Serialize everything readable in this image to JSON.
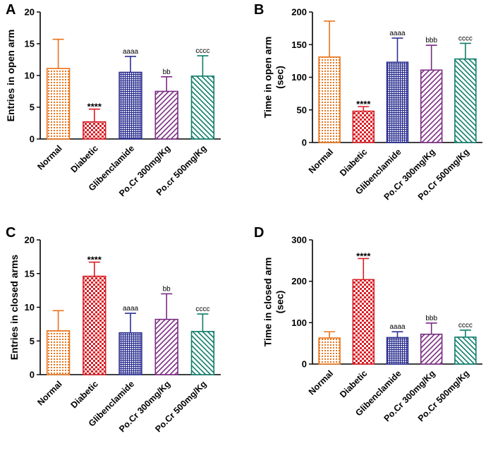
{
  "chart_data": [
    {
      "panel": "A",
      "type": "bar",
      "ylabel_lines": [
        "Entries in open arm"
      ],
      "ylim": [
        0,
        20
      ],
      "yticks": [
        "0",
        "5",
        "10",
        "15",
        "20"
      ],
      "ytick_values": [
        0,
        5,
        10,
        15,
        20
      ],
      "categories": [
        "Normal",
        "Diabetic",
        "Glibenclamide",
        "Po.Cr 300mg/Kg",
        "Po.cr 500mg/Kg"
      ],
      "values": [
        11.1,
        2.7,
        10.5,
        7.5,
        9.9
      ],
      "errors": [
        4.6,
        2.0,
        2.5,
        2.3,
        3.2
      ],
      "annotations": [
        "",
        "****",
        "aaaa",
        "bb",
        "cccc"
      ]
    },
    {
      "panel": "B",
      "type": "bar",
      "ylabel_lines": [
        "Time in open arm",
        "(sec)"
      ],
      "ylim": [
        0,
        200
      ],
      "yticks": [
        "0",
        "50",
        "100",
        "150",
        "200"
      ],
      "ytick_values": [
        0,
        50,
        100,
        150,
        200
      ],
      "categories": [
        "Normal",
        "Diabetic",
        "Glibenclamide",
        "Po.Cr 300mg/Kg",
        "Po.Cr 500mg/Kg"
      ],
      "values": [
        131,
        48,
        123,
        111,
        128
      ],
      "errors": [
        55,
        7,
        37,
        38,
        24
      ],
      "annotations": [
        "",
        "****",
        "aaaa",
        "bbb",
        "cccc"
      ]
    },
    {
      "panel": "C",
      "type": "bar",
      "ylabel_lines": [
        "Entries in closed arms"
      ],
      "ylim": [
        0,
        20
      ],
      "yticks": [
        "0",
        "5",
        "10",
        "15",
        "20"
      ],
      "ytick_values": [
        0,
        5,
        10,
        15,
        20
      ],
      "categories": [
        "Normal",
        "Diabetic",
        "Glibenclamide",
        "Po.Cr 300mg/Kg",
        "Po.Cr 500mg/Kg"
      ],
      "values": [
        6.5,
        14.6,
        6.2,
        8.2,
        6.4
      ],
      "errors": [
        3.0,
        2.1,
        2.9,
        3.8,
        2.6
      ],
      "annotations": [
        "",
        "****",
        "aaaa",
        "bb",
        "cccc"
      ]
    },
    {
      "panel": "D",
      "type": "bar",
      "ylabel_lines": [
        "Time in closed arm",
        "(sec)"
      ],
      "ylim": [
        0,
        300
      ],
      "yticks": [
        "0",
        "100",
        "200",
        "300"
      ],
      "ytick_values": [
        0,
        100,
        200,
        300
      ],
      "categories": [
        "Normal",
        "Diabetic",
        "Glibenclamide",
        "Po.Cr 300mg/Kg",
        "Po.Cr 500mg/Kg"
      ],
      "values": [
        63,
        204,
        64,
        72,
        65
      ],
      "errors": [
        15,
        51,
        14,
        27,
        17
      ],
      "annotations": [
        "",
        "****",
        "aaaa",
        "bbb",
        "cccc"
      ]
    }
  ],
  "colors": {
    "normal": "#e8741c",
    "diabetic": "#d81f26",
    "glibenclamide": "#2b2f8f",
    "po300": "#7b2c82",
    "po500": "#0f7d6b",
    "axis": "#000000"
  }
}
